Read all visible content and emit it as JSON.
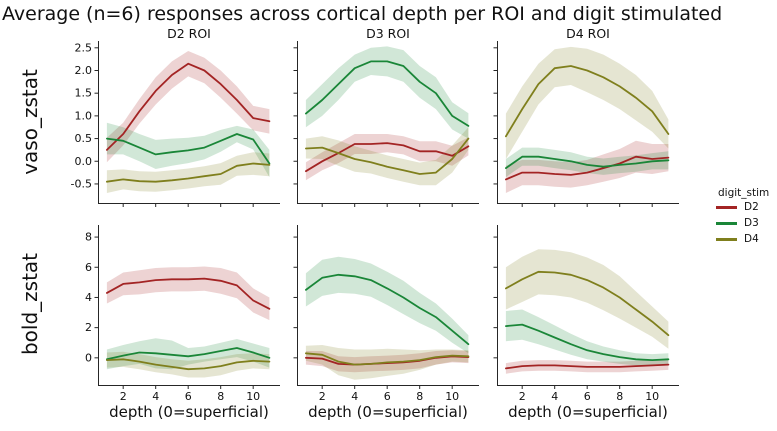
{
  "title": "Average (n=6) responses across cortical depth per ROI and digit stimulated",
  "legend": {
    "title": "digit_stim",
    "entries": [
      {
        "label": "D2"
      },
      {
        "label": "D3"
      },
      {
        "label": "D4"
      }
    ]
  },
  "chart_data": {
    "type": "line",
    "facet_grid": "2 rows (measure) x 3 cols (ROI), shared axes per row, 95% CI bands",
    "x": [
      1,
      2,
      3,
      4,
      5,
      6,
      7,
      8,
      9,
      10,
      11
    ],
    "xlabel": "depth (0=superficial)",
    "xlim": [
      0.45,
      11.65
    ],
    "xticks": {
      "values": [
        2,
        4,
        6,
        8,
        10
      ],
      "labels": [
        "2",
        "4",
        "6",
        "8",
        "10"
      ]
    },
    "col_titles": [
      "D2 ROI",
      "D3 ROI",
      "D4 ROI"
    ],
    "palette": {
      "D2": "#a32424",
      "D3": "#1a8638",
      "D4": "#7f7f1d"
    },
    "band_alpha": 0.2,
    "line_width": 1.8,
    "spine_color": "#262626",
    "rows": [
      {
        "ylabel": "vaso_zstat",
        "ylim": [
          -0.92,
          2.65
        ],
        "yticks": {
          "values": [
            2.5,
            2.0,
            1.5,
            1.0,
            0.5,
            0.0,
            -0.5
          ],
          "labels": [
            "2.5",
            "2.0",
            "1.5",
            "1.0",
            "0.5",
            "0.0",
            "-0.5"
          ]
        },
        "panels": [
          {
            "col_title": "D2 ROI",
            "series": [
              {
                "name": "D2",
                "mean": [
                  0.25,
                  0.6,
                  1.1,
                  1.55,
                  1.9,
                  2.15,
                  2.0,
                  1.7,
                  1.35,
                  0.95,
                  0.88
                ],
                "band": [
                  0.27,
                  0.25,
                  0.27,
                  0.3,
                  0.3,
                  0.28,
                  0.28,
                  0.3,
                  0.3,
                  0.27,
                  0.27
                ]
              },
              {
                "name": "D3",
                "mean": [
                  0.5,
                  0.45,
                  0.3,
                  0.15,
                  0.2,
                  0.24,
                  0.3,
                  0.45,
                  0.6,
                  0.48,
                  -0.05
                ],
                "band": [
                  0.35,
                  0.3,
                  0.3,
                  0.32,
                  0.3,
                  0.28,
                  0.26,
                  0.24,
                  0.18,
                  0.22,
                  0.3
                ]
              },
              {
                "name": "D4",
                "mean": [
                  -0.45,
                  -0.4,
                  -0.44,
                  -0.45,
                  -0.42,
                  -0.38,
                  -0.33,
                  -0.28,
                  -0.1,
                  -0.05,
                  -0.08
                ],
                "band": [
                  0.25,
                  0.22,
                  0.22,
                  0.22,
                  0.22,
                  0.22,
                  0.22,
                  0.24,
                  0.22,
                  0.25,
                  0.25
                ]
              }
            ]
          },
          {
            "col_title": "D3 ROI",
            "series": [
              {
                "name": "D2",
                "mean": [
                  -0.22,
                  0.0,
                  0.18,
                  0.38,
                  0.38,
                  0.4,
                  0.35,
                  0.22,
                  0.22,
                  0.12,
                  0.33
                ],
                "band": [
                  0.2,
                  0.2,
                  0.22,
                  0.22,
                  0.22,
                  0.2,
                  0.2,
                  0.22,
                  0.22,
                  0.22,
                  0.2
                ]
              },
              {
                "name": "D3",
                "mean": [
                  1.05,
                  1.35,
                  1.7,
                  2.05,
                  2.2,
                  2.2,
                  2.1,
                  1.75,
                  1.5,
                  1.0,
                  0.78
                ],
                "band": [
                  0.3,
                  0.35,
                  0.35,
                  0.3,
                  0.3,
                  0.33,
                  0.35,
                  0.35,
                  0.35,
                  0.3,
                  0.28
                ]
              },
              {
                "name": "D4",
                "mean": [
                  0.28,
                  0.3,
                  0.18,
                  0.05,
                  -0.02,
                  -0.12,
                  -0.2,
                  -0.28,
                  -0.25,
                  0.05,
                  0.5
                ],
                "band": [
                  0.22,
                  0.25,
                  0.28,
                  0.28,
                  0.25,
                  0.25,
                  0.25,
                  0.25,
                  0.28,
                  0.3,
                  0.25
                ]
              }
            ]
          },
          {
            "col_title": "D4 ROI",
            "series": [
              {
                "name": "D2",
                "mean": [
                  -0.4,
                  -0.25,
                  -0.25,
                  -0.28,
                  -0.3,
                  -0.25,
                  -0.15,
                  -0.05,
                  0.1,
                  0.05,
                  0.08
                ],
                "band": [
                  0.3,
                  0.28,
                  0.28,
                  0.28,
                  0.28,
                  0.28,
                  0.3,
                  0.32,
                  0.35,
                  0.33,
                  0.3
                ]
              },
              {
                "name": "D3",
                "mean": [
                  -0.15,
                  0.1,
                  0.1,
                  0.05,
                  0.0,
                  -0.08,
                  -0.12,
                  -0.08,
                  -0.05,
                  0.0,
                  0.02
                ],
                "band": [
                  0.2,
                  0.2,
                  0.2,
                  0.2,
                  0.2,
                  0.18,
                  0.18,
                  0.18,
                  0.18,
                  0.18,
                  0.2
                ]
              },
              {
                "name": "D4",
                "mean": [
                  0.55,
                  1.15,
                  1.7,
                  2.05,
                  2.1,
                  2.0,
                  1.85,
                  1.65,
                  1.4,
                  1.1,
                  0.6
                ],
                "band": [
                  0.5,
                  0.5,
                  0.45,
                  0.42,
                  0.42,
                  0.48,
                  0.5,
                  0.5,
                  0.5,
                  0.45,
                  0.32
                ]
              }
            ]
          }
        ]
      },
      {
        "ylabel": "bold_zstat",
        "ylim": [
          -1.8,
          8.8
        ],
        "yticks": {
          "values": [
            8,
            6,
            4,
            2,
            0
          ],
          "labels": [
            "8",
            "6",
            "4",
            "2",
            "0"
          ]
        },
        "panels": [
          {
            "col_title": "D2 ROI",
            "series": [
              {
                "name": "D2",
                "mean": [
                  4.3,
                  4.9,
                  5.0,
                  5.15,
                  5.2,
                  5.2,
                  5.25,
                  5.1,
                  4.8,
                  3.8,
                  3.25
                ],
                "band": [
                  0.7,
                  0.75,
                  0.8,
                  0.8,
                  0.8,
                  0.8,
                  0.8,
                  0.85,
                  0.85,
                  0.8,
                  0.75
                ]
              },
              {
                "name": "D3",
                "mean": [
                  -0.1,
                  0.15,
                  0.35,
                  0.3,
                  0.2,
                  0.1,
                  0.25,
                  0.45,
                  0.65,
                  0.35,
                  0.0
                ],
                "band": [
                  0.65,
                  0.7,
                  0.75,
                  1.0,
                  0.95,
                  0.55,
                  0.5,
                  0.55,
                  0.6,
                  0.6,
                  0.65
                ]
              },
              {
                "name": "D4",
                "mean": [
                  -0.15,
                  -0.1,
                  -0.25,
                  -0.45,
                  -0.6,
                  -0.75,
                  -0.7,
                  -0.55,
                  -0.3,
                  -0.2,
                  -0.25
                ],
                "band": [
                  0.5,
                  0.5,
                  0.5,
                  0.5,
                  0.5,
                  0.55,
                  0.6,
                  0.6,
                  0.55,
                  0.5,
                  0.5
                ]
              }
            ]
          },
          {
            "col_title": "D3 ROI",
            "series": [
              {
                "name": "D2",
                "mean": [
                  0.0,
                  -0.05,
                  -0.4,
                  -0.45,
                  -0.4,
                  -0.35,
                  -0.3,
                  -0.2,
                  0.0,
                  0.1,
                  0.05
                ],
                "band": [
                  0.45,
                  0.5,
                  0.5,
                  0.5,
                  0.5,
                  0.5,
                  0.5,
                  0.5,
                  0.45,
                  0.4,
                  0.4
                ]
              },
              {
                "name": "D3",
                "mean": [
                  4.5,
                  5.3,
                  5.5,
                  5.4,
                  5.15,
                  4.6,
                  4.0,
                  3.3,
                  2.7,
                  1.8,
                  0.9
                ],
                "band": [
                  1.1,
                  1.2,
                  1.2,
                  1.15,
                  1.1,
                  1.1,
                  1.1,
                  1.0,
                  0.9,
                  0.8,
                  0.6
                ]
              },
              {
                "name": "D4",
                "mean": [
                  0.3,
                  0.2,
                  -0.25,
                  -0.45,
                  -0.4,
                  -0.3,
                  -0.25,
                  -0.15,
                  0.05,
                  0.15,
                  0.1
                ],
                "band": [
                  0.5,
                  0.65,
                  0.9,
                  1.0,
                  0.95,
                  0.9,
                  0.8,
                  0.65,
                  0.5,
                  0.4,
                  0.4
                ]
              }
            ]
          },
          {
            "col_title": "D4 ROI",
            "series": [
              {
                "name": "D2",
                "mean": [
                  -0.7,
                  -0.55,
                  -0.5,
                  -0.5,
                  -0.55,
                  -0.6,
                  -0.6,
                  -0.6,
                  -0.55,
                  -0.5,
                  -0.45
                ],
                "band": [
                  0.35,
                  0.35,
                  0.35,
                  0.35,
                  0.35,
                  0.35,
                  0.35,
                  0.35,
                  0.35,
                  0.35,
                  0.35
                ]
              },
              {
                "name": "D3",
                "mean": [
                  2.1,
                  2.2,
                  1.8,
                  1.35,
                  0.9,
                  0.5,
                  0.25,
                  0.05,
                  -0.1,
                  -0.15,
                  -0.1
                ],
                "band": [
                  1.0,
                  1.0,
                  0.9,
                  0.8,
                  0.7,
                  0.6,
                  0.5,
                  0.45,
                  0.4,
                  0.4,
                  0.4
                ]
              },
              {
                "name": "D4",
                "mean": [
                  4.6,
                  5.2,
                  5.7,
                  5.65,
                  5.5,
                  5.15,
                  4.65,
                  4.0,
                  3.2,
                  2.4,
                  1.5
                ],
                "band": [
                  1.4,
                  1.5,
                  1.5,
                  1.5,
                  1.5,
                  1.5,
                  1.5,
                  1.4,
                  1.2,
                  1.0,
                  0.9
                ]
              }
            ]
          }
        ]
      }
    ]
  }
}
